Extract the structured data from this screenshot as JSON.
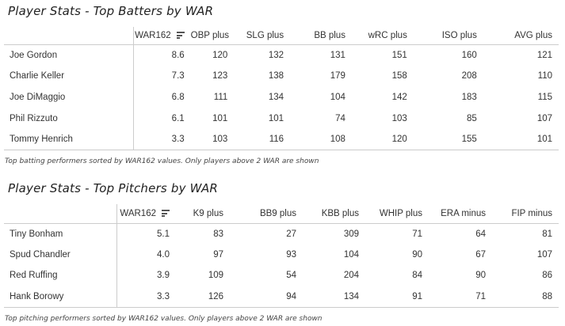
{
  "batters": {
    "title": "Player Stats - Top Batters by WAR",
    "columns": [
      "",
      "WAR162",
      "OBP plus",
      "SLG plus",
      "BB plus",
      "wRC plus",
      "ISO plus",
      "AVG plus"
    ],
    "rows": [
      [
        "Joe Gordon",
        "8.6",
        "120",
        "132",
        "131",
        "151",
        "160",
        "121"
      ],
      [
        "Charlie Keller",
        "7.3",
        "123",
        "138",
        "179",
        "158",
        "208",
        "110"
      ],
      [
        "Joe DiMaggio",
        "6.8",
        "111",
        "134",
        "104",
        "142",
        "183",
        "115"
      ],
      [
        "Phil Rizzuto",
        "6.1",
        "101",
        "101",
        "74",
        "103",
        "85",
        "107"
      ],
      [
        "Tommy Henrich",
        "3.3",
        "103",
        "116",
        "108",
        "120",
        "155",
        "101"
      ]
    ],
    "caption": "Top batting performers sorted by WAR162 values. Only players above 2 WAR are shown"
  },
  "pitchers": {
    "title": "Player Stats - Top Pitchers by WAR",
    "columns": [
      "",
      "WAR162",
      "K9 plus",
      "BB9 plus",
      "KBB plus",
      "WHIP plus",
      "ERA minus",
      "FIP minus"
    ],
    "rows": [
      [
        "Tiny Bonham",
        "5.1",
        "83",
        "27",
        "309",
        "71",
        "64",
        "81"
      ],
      [
        "Spud Chandler",
        "4.0",
        "97",
        "93",
        "104",
        "90",
        "67",
        "107"
      ],
      [
        "Red Ruffing",
        "3.9",
        "109",
        "54",
        "204",
        "84",
        "90",
        "86"
      ],
      [
        "Hank Borowy",
        "3.3",
        "126",
        "94",
        "134",
        "91",
        "71",
        "88"
      ]
    ],
    "caption": "Top pitching performers sorted by WAR162 values. Only players above 2 WAR are shown"
  }
}
